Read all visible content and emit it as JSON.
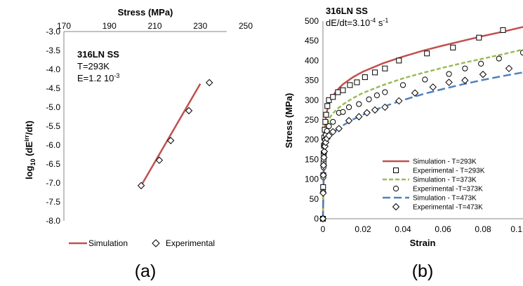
{
  "chart_data": [
    {
      "panel_label": "(a)",
      "type": "line",
      "annotations": [
        "316LN SS",
        "T=293K",
        "E=1.2 10"
      ],
      "annotation_exp": "-3",
      "xlabel": "Stress (MPa)",
      "xaxis_position": "top",
      "ylabel_main": "log",
      "ylabel_sub": "10",
      "ylabel_mid": " (dE",
      "ylabel_sup": "irr",
      "ylabel_end": "/dt)",
      "xlim": [
        170,
        250
      ],
      "ylim": [
        -8.0,
        -3.0
      ],
      "xticks": [
        "170",
        "190",
        "210",
        "230",
        "250"
      ],
      "yticks": [
        "-3.0",
        "-3.5",
        "-4.0",
        "-4.5",
        "-5.0",
        "-5.5",
        "-6.0",
        "-6.5",
        "-7.0",
        "-7.5",
        "-8.0"
      ],
      "grid": false,
      "legend_position": "bottom",
      "series": [
        {
          "name": "Simulation",
          "kind": "line",
          "color": "#c0504d",
          "x": [
            204,
            230
          ],
          "y": [
            -7.07,
            -4.38
          ]
        },
        {
          "name": "Experimental",
          "kind": "marker",
          "marker": "diamond",
          "color": "#000000",
          "x": [
            204,
            212,
            217,
            225,
            234
          ],
          "y": [
            -7.07,
            -6.4,
            -5.88,
            -5.09,
            -4.35
          ]
        }
      ]
    },
    {
      "panel_label": "(b)",
      "type": "line",
      "annotations": [
        "316LN SS",
        "dE/dt=3.10"
      ],
      "annotation_exp": "-4",
      "annotation_unit": " s",
      "annotation_unit_exp": "-1",
      "xlabel": "Strain",
      "ylabel": "Stress (MPa)",
      "xlim": [
        0,
        0.1
      ],
      "ylim": [
        0,
        500
      ],
      "xticks": [
        "0",
        "0.02",
        "0.04",
        "0.06",
        "0.08",
        "0.1"
      ],
      "yticks": [
        "0",
        "50",
        "100",
        "150",
        "200",
        "250",
        "300",
        "350",
        "400",
        "450",
        "500"
      ],
      "grid": false,
      "legend_position": "bottom-right",
      "series": [
        {
          "name": "Simulation - T=293K",
          "kind": "line",
          "style": "solid",
          "color": "#c0504d",
          "x": [
            0,
            0.0003,
            0.0006,
            0.001,
            0.0015,
            0.002,
            0.003,
            0.004,
            0.006,
            0.008,
            0.01,
            0.015,
            0.02,
            0.03,
            0.04,
            0.05,
            0.06,
            0.07,
            0.08,
            0.09,
            0.1
          ],
          "y": [
            0,
            100,
            185,
            230,
            258,
            272,
            290,
            302,
            318,
            330,
            340,
            358,
            372,
            393,
            410,
            425,
            438,
            450,
            462,
            473,
            485
          ]
        },
        {
          "name": "Experimental - T=293K",
          "kind": "marker",
          "marker": "square",
          "color": "#000000",
          "x": [
            0,
            0.0001,
            0.0002,
            0.0003,
            0.0004,
            0.0005,
            0.0007,
            0.0009,
            0.0012,
            0.0016,
            0.0022,
            0.003,
            0.005,
            0.0075,
            0.01,
            0.0135,
            0.017,
            0.021,
            0.026,
            0.031,
            0.038,
            0.052,
            0.065,
            0.078,
            0.09
          ],
          "y": [
            0,
            80,
            110,
            140,
            165,
            185,
            205,
            225,
            245,
            263,
            285,
            300,
            308,
            320,
            325,
            338,
            345,
            358,
            370,
            380,
            400,
            418,
            433,
            458,
            477
          ]
        },
        {
          "name": "Simulation - T=373K",
          "kind": "line",
          "style": "short-dash",
          "color": "#9bbb59",
          "x": [
            0,
            0.0003,
            0.0006,
            0.001,
            0.0015,
            0.002,
            0.003,
            0.004,
            0.006,
            0.008,
            0.01,
            0.015,
            0.02,
            0.03,
            0.04,
            0.05,
            0.06,
            0.07,
            0.08,
            0.09,
            0.1
          ],
          "y": [
            0,
            90,
            160,
            200,
            222,
            234,
            250,
            260,
            272,
            281,
            289,
            305,
            318,
            338,
            355,
            369,
            382,
            394,
            405,
            416,
            428
          ]
        },
        {
          "name": "Experimental -T=373K",
          "kind": "marker",
          "marker": "circle",
          "color": "#000000",
          "x": [
            0,
            0.0001,
            0.0002,
            0.0003,
            0.0004,
            0.0006,
            0.0008,
            0.0011,
            0.0015,
            0.002,
            0.003,
            0.005,
            0.008,
            0.01,
            0.013,
            0.018,
            0.023,
            0.027,
            0.031,
            0.04,
            0.051,
            0.063,
            0.071,
            0.079,
            0.088,
            0.1
          ],
          "y": [
            0,
            68,
            105,
            130,
            150,
            168,
            185,
            200,
            212,
            222,
            234,
            245,
            268,
            270,
            282,
            290,
            302,
            312,
            320,
            338,
            352,
            366,
            380,
            392,
            405,
            420
          ]
        },
        {
          "name": "Simulation -  T=473K",
          "kind": "line",
          "style": "long-dash",
          "color": "#4f81bd",
          "x": [
            0,
            0.0003,
            0.0006,
            0.001,
            0.0015,
            0.002,
            0.003,
            0.004,
            0.006,
            0.008,
            0.01,
            0.015,
            0.02,
            0.03,
            0.04,
            0.05,
            0.06,
            0.07,
            0.08,
            0.09,
            0.1
          ],
          "y": [
            0,
            85,
            145,
            175,
            190,
            198,
            207,
            213,
            222,
            229,
            236,
            251,
            263,
            283,
            300,
            315,
            328,
            340,
            351,
            361,
            370
          ]
        },
        {
          "name": "Experimental -T=473K",
          "kind": "marker",
          "marker": "diamond",
          "color": "#000000",
          "x": [
            0,
            0.0001,
            0.0002,
            0.0003,
            0.0005,
            0.0007,
            0.001,
            0.0014,
            0.002,
            0.003,
            0.005,
            0.008,
            0.013,
            0.018,
            0.022,
            0.026,
            0.031,
            0.038,
            0.046,
            0.055,
            0.063,
            0.071,
            0.08,
            0.093
          ],
          "y": [
            0,
            65,
            110,
            135,
            155,
            170,
            183,
            193,
            203,
            210,
            220,
            228,
            248,
            258,
            268,
            275,
            282,
            298,
            318,
            333,
            345,
            350,
            365,
            380
          ]
        }
      ]
    }
  ]
}
